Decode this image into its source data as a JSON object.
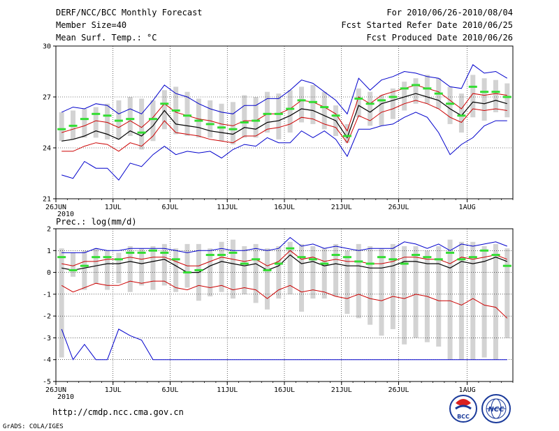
{
  "header": {
    "title": "DERF/NCC/BCC Monthly Forecast",
    "member": "Member Size=40",
    "variable": "Mean Surf. Temp.: °C",
    "period": "For 2010/06/26-2010/08/04",
    "refer": "Fcst Started Refer Date 2010/06/25",
    "produced": "Fcst Produced Date 2010/06/26"
  },
  "footer": {
    "url": "http://cmdp.ncc.cma.gov.cn",
    "credit": "GrADS: COLA/IGES",
    "logo_bcc": "BCC",
    "logo_ncc": "NCC"
  },
  "x_ticks": [
    "26JUN",
    "1JUL",
    "6JUL",
    "11JUL",
    "16JUL",
    "21JUL",
    "26JUL",
    "1AUG"
  ],
  "x_tick_days": [
    0,
    5,
    10,
    15,
    20,
    25,
    30,
    36
  ],
  "x_year": "2010",
  "colors": {
    "box": "#d3d3d3",
    "mean": "#33dd33",
    "ens": "#000000",
    "inner": "#cc0000",
    "outer": "#0000cc"
  },
  "chart_data": [
    {
      "type": "box",
      "title": "Mean Surf. Temp.: °C",
      "ylim": [
        21,
        30
      ],
      "yticks": [
        21,
        24,
        27,
        30
      ],
      "days": 40,
      "box_low": [
        24.4,
        24.5,
        24.6,
        24.6,
        24.5,
        24.5,
        24.7,
        23.9,
        24.4,
        25.1,
        24.8,
        24.7,
        24.6,
        24.6,
        24.4,
        24.2,
        24.6,
        24.6,
        24.9,
        24.5,
        24.9,
        25.5,
        25.4,
        25.1,
        24.7,
        24.3,
        25.8,
        25.3,
        25.3,
        25.7,
        26.2,
        26.6,
        26.6,
        26.3,
        25.4,
        24.9,
        25.8,
        25.6,
        26.1,
        25.8
      ],
      "box_high": [
        26.1,
        26.2,
        26.3,
        26.4,
        26.6,
        26.8,
        27.0,
        26.9,
        26.8,
        27.4,
        27.6,
        27.3,
        26.9,
        26.8,
        26.6,
        26.7,
        27.1,
        27.0,
        27.3,
        27.2,
        27.4,
        27.6,
        27.7,
        27.3,
        26.5,
        25.4,
        27.5,
        27.3,
        27.1,
        27.5,
        27.9,
        28.1,
        28.3,
        28.1,
        27.6,
        27.2,
        28.3,
        28.1,
        28.0,
        27.8
      ],
      "mean_green": [
        25.1,
        25.3,
        25.7,
        26.0,
        25.9,
        25.6,
        25.7,
        24.9,
        25.7,
        26.6,
        26.2,
        25.9,
        25.6,
        25.4,
        25.2,
        25.1,
        25.5,
        25.6,
        26.0,
        26.0,
        26.3,
        26.8,
        26.7,
        26.4,
        25.9,
        24.7,
        26.9,
        26.6,
        26.8,
        27.0,
        27.5,
        27.7,
        27.5,
        27.2,
        26.6,
        25.9,
        27.6,
        27.3,
        27.3,
        27.0
      ],
      "series": [
        {
          "name": "ensemble mean",
          "role": "ens",
          "values": [
            24.4,
            24.5,
            24.7,
            25.0,
            24.8,
            24.5,
            25.0,
            24.7,
            25.3,
            26.2,
            25.4,
            25.3,
            25.2,
            25.0,
            24.9,
            24.8,
            25.2,
            25.1,
            25.5,
            25.6,
            25.9,
            26.3,
            26.2,
            25.9,
            25.6,
            24.6,
            26.5,
            26.1,
            26.6,
            26.8,
            27.0,
            27.2,
            27.0,
            26.8,
            26.3,
            25.9,
            26.7,
            26.6,
            26.8,
            26.6
          ]
        },
        {
          "name": "inner band high",
          "role": "inner",
          "values": [
            24.9,
            25.1,
            25.3,
            25.6,
            25.5,
            25.2,
            25.6,
            25.2,
            25.8,
            26.6,
            26.1,
            25.9,
            25.7,
            25.6,
            25.4,
            25.3,
            25.6,
            25.6,
            26.0,
            26.0,
            26.3,
            26.8,
            26.7,
            26.4,
            26.0,
            25.0,
            27.0,
            26.6,
            27.1,
            27.3,
            27.5,
            27.7,
            27.5,
            27.3,
            26.8,
            26.3,
            27.2,
            27.1,
            27.2,
            27.1
          ]
        },
        {
          "name": "inner band low",
          "role": "inner",
          "values": [
            23.8,
            23.8,
            24.1,
            24.3,
            24.2,
            23.8,
            24.3,
            24.1,
            24.7,
            25.6,
            24.9,
            24.8,
            24.7,
            24.5,
            24.4,
            24.3,
            24.7,
            24.7,
            25.1,
            25.2,
            25.4,
            25.8,
            25.7,
            25.4,
            25.2,
            24.3,
            25.9,
            25.6,
            26.1,
            26.3,
            26.6,
            26.8,
            26.6,
            26.3,
            25.8,
            25.5,
            26.3,
            26.2,
            26.3,
            26.2
          ]
        },
        {
          "name": "outer band high",
          "role": "outer",
          "values": [
            26.1,
            26.4,
            26.3,
            26.6,
            26.5,
            26.0,
            26.3,
            26.0,
            26.8,
            27.7,
            27.2,
            27.0,
            26.6,
            26.3,
            26.1,
            26.0,
            26.5,
            26.5,
            26.9,
            26.9,
            27.4,
            28.0,
            27.8,
            27.3,
            26.8,
            26.0,
            28.1,
            27.4,
            28.0,
            28.2,
            28.5,
            28.4,
            28.2,
            28.1,
            27.6,
            27.5,
            28.9,
            28.4,
            28.5,
            28.1
          ]
        },
        {
          "name": "outer band low",
          "role": "outer",
          "values": [
            22.4,
            22.2,
            23.2,
            22.8,
            22.8,
            22.1,
            23.1,
            22.9,
            23.6,
            24.1,
            23.6,
            23.8,
            23.7,
            23.8,
            23.4,
            23.9,
            24.2,
            24.1,
            24.6,
            24.3,
            24.3,
            25.0,
            24.6,
            25.0,
            24.5,
            23.5,
            25.1,
            25.1,
            25.3,
            25.4,
            25.8,
            26.1,
            25.8,
            24.9,
            23.6,
            24.2,
            24.6,
            25.3,
            25.6,
            25.6
          ]
        }
      ]
    },
    {
      "type": "box",
      "title": "Prec.: log(mm/d)",
      "ylim": [
        -5,
        2
      ],
      "yticks": [
        -5,
        -4,
        -3,
        -2,
        -1,
        0,
        1,
        2
      ],
      "days": 40,
      "box_low": [
        -3.9,
        -0.2,
        -0.8,
        -0.5,
        -0.8,
        -0.5,
        -0.9,
        -0.6,
        -0.8,
        -0.6,
        -0.9,
        -0.7,
        -1.3,
        -1.1,
        -0.9,
        -1.2,
        -1.0,
        -1.4,
        -1.7,
        -1.2,
        -1.0,
        -1.8,
        -1.2,
        -1.2,
        -1.1,
        -1.9,
        -2.1,
        -2.4,
        -2.9,
        -2.6,
        -3.3,
        -3.0,
        -3.2,
        -3.4,
        -4.0,
        -4.0,
        -4.0,
        -3.9,
        -4.0,
        -3.0
      ],
      "box_high": [
        1.1,
        0.9,
        1.0,
        1.1,
        1.0,
        0.9,
        1.2,
        1.1,
        1.2,
        1.3,
        1.1,
        1.3,
        1.3,
        1.1,
        1.4,
        1.5,
        1.2,
        1.3,
        1.1,
        1.2,
        1.4,
        1.3,
        1.2,
        1.1,
        1.3,
        1.0,
        1.3,
        1.2,
        1.1,
        1.3,
        1.2,
        1.2,
        1.0,
        1.2,
        1.5,
        1.4,
        1.4,
        1.2,
        1.3,
        1.1
      ],
      "mean_green": [
        0.7,
        0.1,
        0.3,
        0.7,
        0.7,
        0.6,
        0.9,
        0.9,
        1.0,
        0.9,
        0.6,
        0.0,
        0.1,
        0.8,
        0.8,
        0.9,
        0.4,
        0.6,
        0.1,
        0.4,
        1.1,
        0.7,
        0.6,
        0.4,
        0.8,
        0.7,
        0.5,
        0.4,
        0.7,
        0.6,
        0.4,
        0.8,
        0.7,
        0.6,
        0.9,
        0.6,
        0.7,
        1.0,
        0.8,
        0.3
      ],
      "series": [
        {
          "name": "ensemble mean",
          "role": "ens",
          "values": [
            0.2,
            0.1,
            0.2,
            0.3,
            0.4,
            0.4,
            0.5,
            0.4,
            0.5,
            0.6,
            0.3,
            0.0,
            0.0,
            0.3,
            0.5,
            0.4,
            0.3,
            0.4,
            0.1,
            0.3,
            0.8,
            0.4,
            0.5,
            0.3,
            0.4,
            0.3,
            0.3,
            0.2,
            0.2,
            0.3,
            0.5,
            0.5,
            0.4,
            0.4,
            0.2,
            0.5,
            0.4,
            0.5,
            0.7,
            0.5
          ]
        },
        {
          "name": "inner band high",
          "role": "inner",
          "values": [
            0.4,
            0.3,
            0.5,
            0.5,
            0.6,
            0.6,
            0.7,
            0.6,
            0.7,
            0.7,
            0.5,
            0.3,
            0.3,
            0.5,
            0.7,
            0.6,
            0.5,
            0.6,
            0.3,
            0.5,
            1.0,
            0.6,
            0.7,
            0.5,
            0.6,
            0.5,
            0.5,
            0.4,
            0.4,
            0.5,
            0.7,
            0.7,
            0.6,
            0.6,
            0.4,
            0.7,
            0.6,
            0.7,
            0.8,
            0.6
          ]
        },
        {
          "name": "inner band low",
          "role": "inner",
          "values": [
            -0.6,
            -0.9,
            -0.7,
            -0.5,
            -0.6,
            -0.6,
            -0.4,
            -0.5,
            -0.4,
            -0.4,
            -0.7,
            -0.8,
            -0.6,
            -0.7,
            -0.6,
            -0.8,
            -0.7,
            -0.8,
            -1.2,
            -0.8,
            -0.6,
            -0.9,
            -0.8,
            -0.9,
            -1.1,
            -1.2,
            -1.0,
            -1.2,
            -1.3,
            -1.1,
            -1.2,
            -1.0,
            -1.1,
            -1.3,
            -1.3,
            -1.5,
            -1.2,
            -1.5,
            -1.6,
            -2.1
          ]
        },
        {
          "name": "outer band high",
          "role": "outer",
          "values": [
            0.9,
            0.9,
            0.9,
            1.1,
            1.0,
            1.0,
            1.1,
            1.1,
            1.1,
            1.1,
            1.0,
            0.9,
            1.0,
            1.0,
            1.1,
            1.0,
            1.0,
            1.1,
            1.0,
            1.1,
            1.6,
            1.2,
            1.3,
            1.1,
            1.2,
            1.1,
            1.0,
            1.1,
            1.1,
            1.1,
            1.4,
            1.3,
            1.1,
            1.3,
            1.0,
            1.3,
            1.2,
            1.3,
            1.4,
            1.2
          ]
        },
        {
          "name": "outer band low",
          "role": "outer",
          "values": [
            -2.6,
            -4.0,
            -3.3,
            -4.0,
            -4.0,
            -2.6,
            -2.9,
            -3.1,
            -4.0,
            -4.0,
            -4.0,
            -4.0,
            -4.0,
            -4.0,
            -4.0,
            -4.0,
            -4.0,
            -4.0,
            -4.0,
            -4.0,
            -4.0,
            -4.0,
            -4.0,
            -4.0,
            -4.0,
            -4.0,
            -4.0,
            -4.0,
            -4.0,
            -4.0,
            -4.0,
            -4.0,
            -4.0,
            -4.0,
            -4.0,
            -4.0,
            -4.0,
            -4.0,
            -4.0,
            -4.0
          ]
        }
      ]
    }
  ]
}
